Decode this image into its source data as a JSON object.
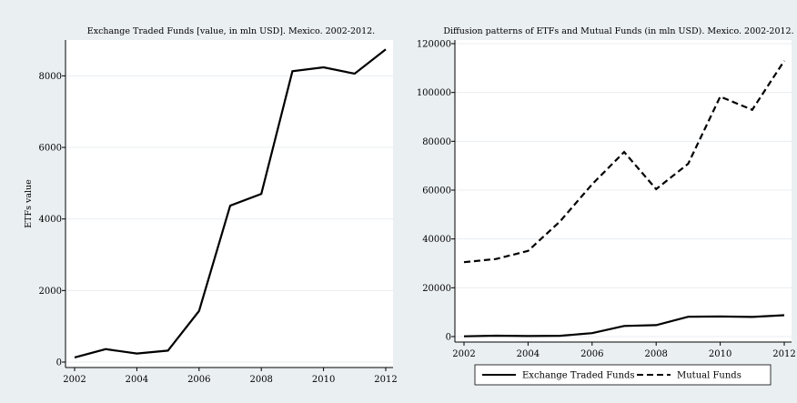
{
  "chart_data": [
    {
      "type": "line",
      "title": "Exchange Traded Funds [value, in mln USD]. Mexico. 2002-2012.",
      "xlabel": "",
      "ylabel": "ETFs value",
      "x": [
        2002,
        2003,
        2004,
        2005,
        2006,
        2007,
        2008,
        2009,
        2010,
        2011,
        2012
      ],
      "xticks": [
        "2002",
        "2004",
        "2006",
        "2008",
        "2010",
        "2012"
      ],
      "yticks": [
        "0",
        "2000",
        "4000",
        "6000",
        "8000"
      ],
      "xlim": [
        2002,
        2012
      ],
      "ylim": [
        0,
        8900
      ],
      "grid": true,
      "series": [
        {
          "values": [
            130,
            360,
            240,
            320,
            1430,
            4370,
            4700,
            8130,
            8240,
            8060,
            8740
          ],
          "style": "solid"
        }
      ]
    },
    {
      "type": "line",
      "title": "Diffusion patterns of ETFs and Mutual Funds (in mln USD). Mexico. 2002-2012.",
      "xlabel": "",
      "ylabel": "",
      "x": [
        2002,
        2003,
        2004,
        2005,
        2006,
        2007,
        2008,
        2009,
        2010,
        2011,
        2012
      ],
      "xticks": [
        "2002",
        "2004",
        "2006",
        "2008",
        "2010",
        "2012"
      ],
      "yticks": [
        "0",
        "20000",
        "40000",
        "60000",
        "80000",
        "100000",
        "120000"
      ],
      "xlim": [
        2002,
        2012
      ],
      "ylim": [
        0,
        120000
      ],
      "grid": true,
      "legend_position": "bottom",
      "series": [
        {
          "name": "Exchange Traded Funds",
          "values": [
            130,
            360,
            240,
            320,
            1430,
            4370,
            4700,
            8130,
            8240,
            8060,
            8740
          ],
          "style": "solid"
        },
        {
          "name": "Mutual Funds",
          "values": [
            30500,
            31800,
            35100,
            47200,
            62400,
            75600,
            60400,
            70800,
            98300,
            92900,
            113000
          ],
          "style": "dashed"
        }
      ]
    }
  ],
  "colors": {
    "background": "#eaeff2",
    "plot_area": "#ffffff",
    "gridline": "#e8edf1",
    "line": "#000000"
  }
}
